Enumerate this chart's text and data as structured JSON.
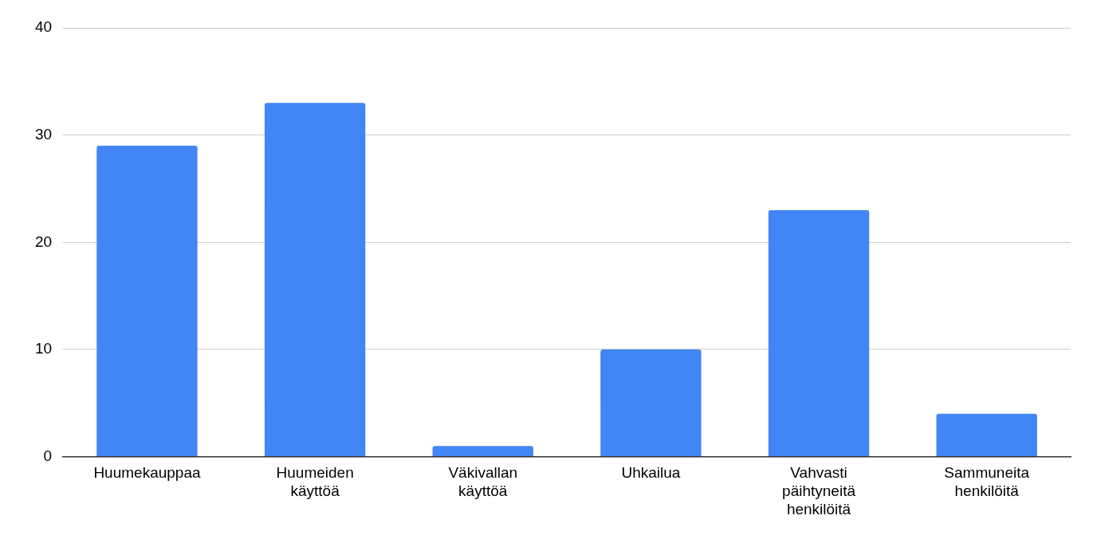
{
  "chart_data": {
    "type": "bar",
    "categories": [
      "Huumekauppaa",
      "Huumeiden käyttöä",
      "Väkivallan käyttöä",
      "Uhkailua",
      "Vahvasti päihtyneitä henkilöitä",
      "Sammuneita henkilöitä"
    ],
    "values": [
      29,
      33,
      1,
      10,
      23,
      4
    ],
    "color": "#4285f4",
    "ylim": [
      0,
      40
    ],
    "yticks": [
      0,
      10,
      20,
      30,
      40
    ],
    "grid": "y"
  }
}
